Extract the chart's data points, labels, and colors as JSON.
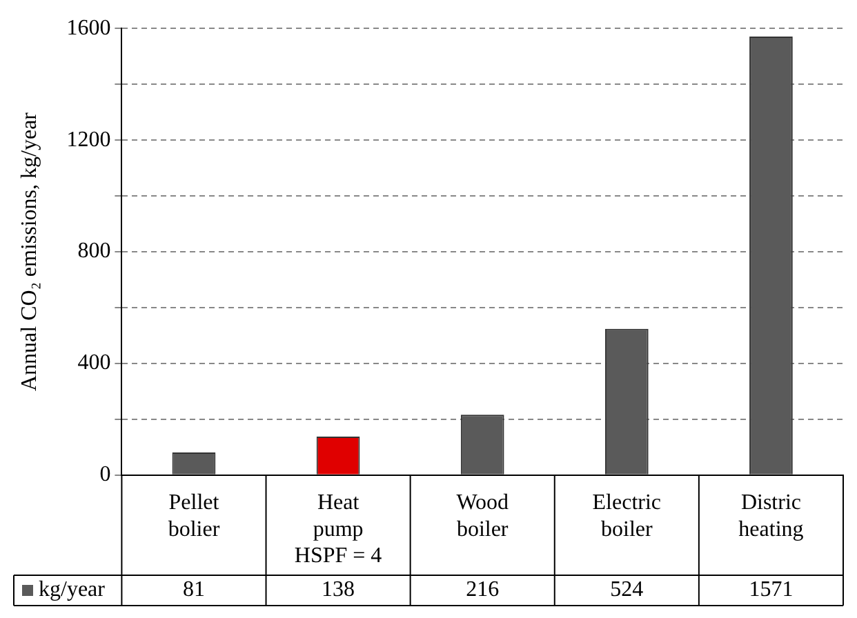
{
  "chart_data": {
    "type": "bar",
    "ylabel": "Annual CO₂ emissions, kg/year",
    "categories": [
      "Pellet bolier",
      "Heat pump HSPF = 4",
      "Wood boiler",
      "Electric boiler",
      "Distric heating"
    ],
    "series": [
      {
        "name": "kg/year",
        "color": "#5a5a5a",
        "colors": [
          "#5a5a5a",
          "#e00000",
          "#5a5a5a",
          "#5a5a5a",
          "#5a5a5a"
        ],
        "values": [
          81,
          138,
          216,
          524,
          1571
        ]
      }
    ],
    "ylim": [
      0,
      1600
    ],
    "yticks": [
      0,
      {
        "value": 200,
        "label": null
      },
      400,
      {
        "value": 600,
        "label": null
      },
      800,
      {
        "value": 1000,
        "label": null
      },
      1200,
      {
        "value": 1400,
        "label": null
      },
      1600
    ],
    "grid": "y",
    "data_labels": true
  }
}
